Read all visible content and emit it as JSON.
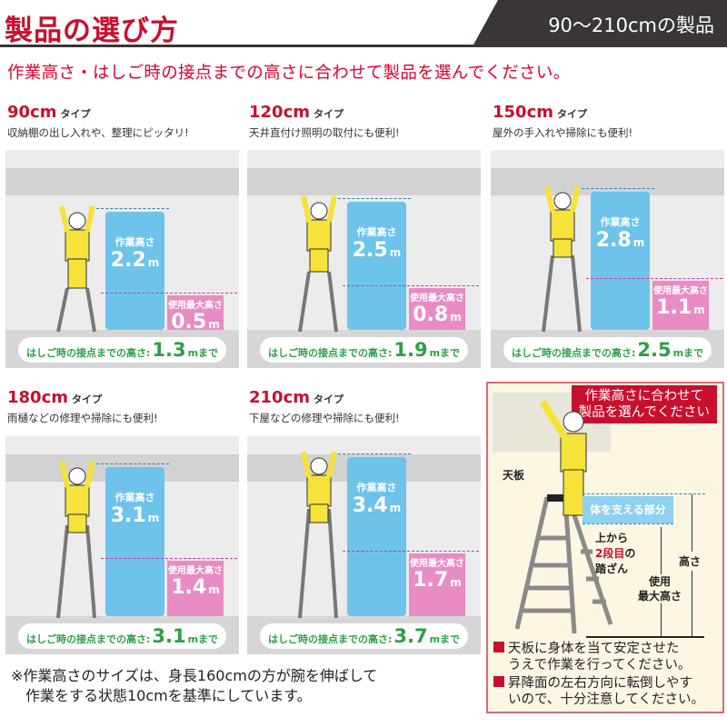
{
  "header": {
    "title": "製品の選び方",
    "badge": "90〜210cmの製品"
  },
  "subtitle": "作業高さ・はしご時の接点までの高さに合わせて製品を選んでください。",
  "colors": {
    "brand_red": "#c8102e",
    "work_height_blue": "#6ec3ea",
    "max_height_pink": "#e88cc3",
    "contact_green": "#2ea046"
  },
  "labels": {
    "type_suffix": "タイプ",
    "work_height": "作業高さ",
    "max_height": "使用最大高さ",
    "contact_prefix": "はしご時の接点までの高さ:",
    "contact_suffix": "まで",
    "unit": "m"
  },
  "products": [
    {
      "size": "90cm",
      "desc": "収納棚の出し入れや、整理にピッタリ!",
      "work_height": "2.2",
      "max_height": "0.5",
      "contact_height": "1.3"
    },
    {
      "size": "120cm",
      "desc": "天井直付け照明の取付にも便利!",
      "work_height": "2.5",
      "max_height": "0.8",
      "contact_height": "1.9"
    },
    {
      "size": "150cm",
      "desc": "屋外の手入れや掃除にも便利!",
      "work_height": "2.8",
      "max_height": "1.1",
      "contact_height": "2.5"
    },
    {
      "size": "180cm",
      "desc": "雨樋などの修理や掃除にも便利!",
      "work_height": "3.1",
      "max_height": "1.4",
      "contact_height": "3.1"
    },
    {
      "size": "210cm",
      "desc": "下屋などの修理や掃除にも便利!",
      "work_height": "3.4",
      "max_height": "1.7",
      "contact_height": "3.7"
    }
  ],
  "note": {
    "line1": "※作業高さのサイズは、身長160cmの方が腕を伸ばして",
    "line2": "作業をする状態10cmを基準にしています。"
  },
  "info": {
    "header_line1": "作業高さに合わせて",
    "header_line2": "製品を選んでください",
    "top_plate": "天板",
    "support_area": "体を支える部分",
    "step_line1": "上から",
    "step_highlight": "2段目",
    "step_of": "の",
    "step_line3": "踏ざん",
    "height": "高さ",
    "max_line1": "使用",
    "max_line2": "最大高さ",
    "warning1_line1": "天板に身体を当て安定させた",
    "warning1_line2": "うえで作業を行ってください。",
    "warning2_line1": "昇降面の左右方向に転倒しやす",
    "warning2_line2": "いので、十分注意してください。"
  }
}
